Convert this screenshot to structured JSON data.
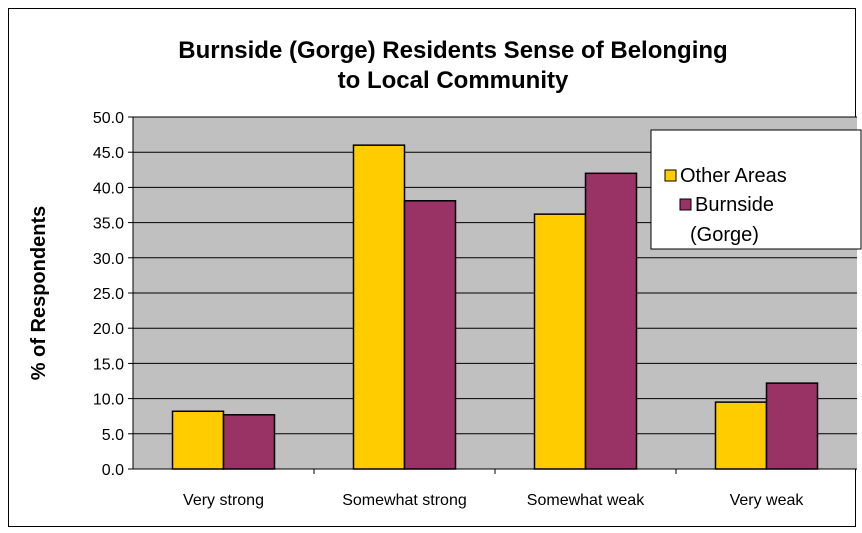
{
  "chart_data": {
    "type": "bar",
    "title_line1": "Burnside (Gorge) Residents Sense of Belonging",
    "title_line2": "to Local Community",
    "ylabel": "% of Respondents",
    "xlabel": "",
    "ylim": [
      0,
      50
    ],
    "ytick_step": 5,
    "yticks": [
      "0.0",
      "5.0",
      "10.0",
      "15.0",
      "20.0",
      "25.0",
      "30.0",
      "35.0",
      "40.0",
      "45.0",
      "50.0"
    ],
    "grid": true,
    "legend_position": "top-right",
    "categories": [
      "Very strong",
      "Somewhat strong",
      "Somewhat weak",
      "Very weak"
    ],
    "series": [
      {
        "name": "Other Areas",
        "values": [
          8.2,
          46.0,
          36.2,
          9.5
        ],
        "color": "#FFCC00"
      },
      {
        "name": "Burnside (Gorge)",
        "values": [
          7.7,
          38.1,
          42.0,
          12.2
        ],
        "color": "#993366"
      }
    ],
    "legend": {
      "entry1": "Other Areas",
      "entry2_line1": "Burnside",
      "entry2_line2": "(Gorge)"
    },
    "plot_background": "#C0C0C0"
  }
}
